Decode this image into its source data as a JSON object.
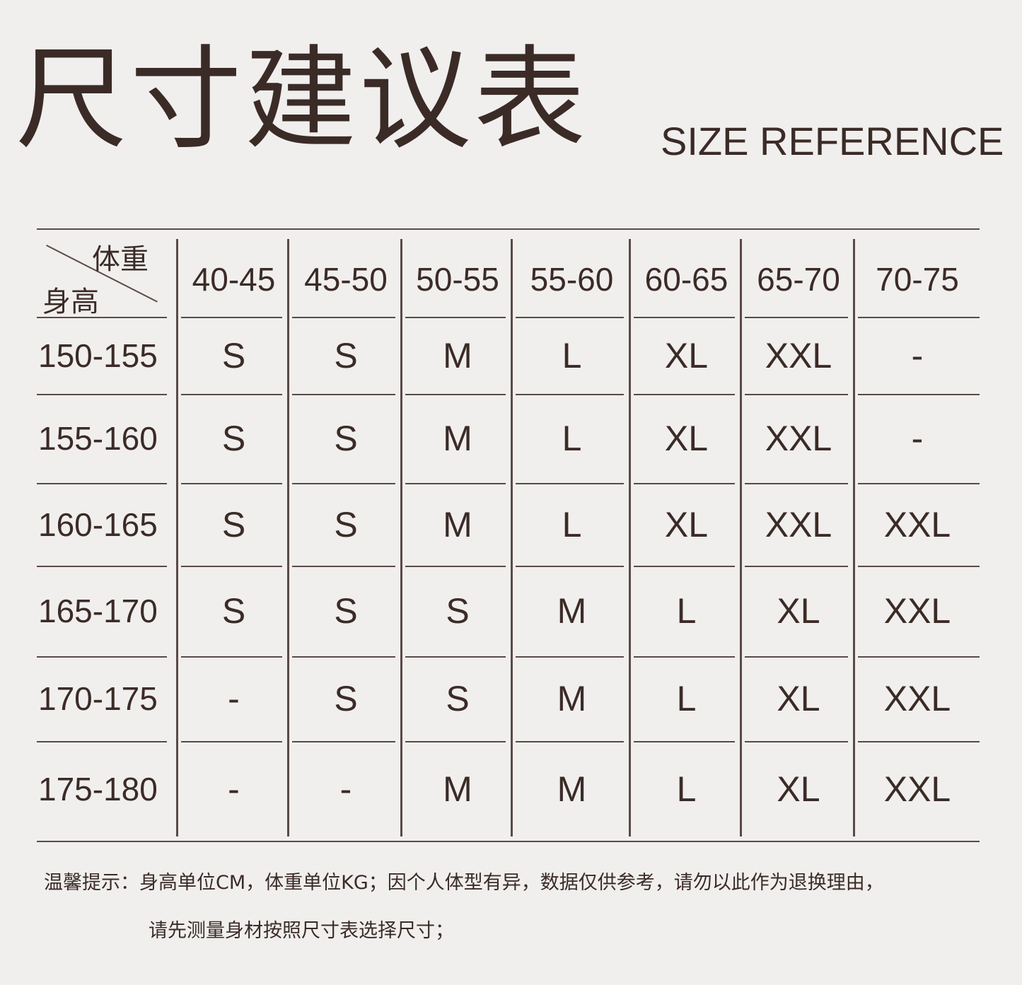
{
  "title": "尺寸建议表",
  "subtitle": "SIZE REFERENCE",
  "table": {
    "corner_weight_label": "体重",
    "corner_height_label": "身高",
    "weight_columns": [
      "40-45",
      "45-50",
      "50-55",
      "55-60",
      "60-65",
      "65-70",
      "70-75"
    ],
    "rows": [
      {
        "height": "150-155",
        "sizes": [
          "S",
          "S",
          "M",
          "L",
          "XL",
          "XXL",
          "-"
        ]
      },
      {
        "height": "155-160",
        "sizes": [
          "S",
          "S",
          "M",
          "L",
          "XL",
          "XXL",
          "-"
        ]
      },
      {
        "height": "160-165",
        "sizes": [
          "S",
          "S",
          "M",
          "L",
          "XL",
          "XXL",
          "XXL"
        ]
      },
      {
        "height": "165-170",
        "sizes": [
          "S",
          "S",
          "S",
          "M",
          "L",
          "XL",
          "XXL"
        ]
      },
      {
        "height": "170-175",
        "sizes": [
          "-",
          "S",
          "S",
          "M",
          "L",
          "XL",
          "XXL"
        ]
      },
      {
        "height": "175-180",
        "sizes": [
          "-",
          "-",
          "M",
          "M",
          "L",
          "XL",
          "XXL"
        ]
      }
    ]
  },
  "notes": {
    "line1": "温馨提示：身高单位CM，体重单位KG；因个人体型有异，数据仅供参考，请勿以此作为退换理由，",
    "line2": "请先测量身材按照尺寸表选择尺寸；"
  },
  "colors": {
    "text": "#3b2b27",
    "background": "#f0efee",
    "rule": "#5a4a46"
  }
}
